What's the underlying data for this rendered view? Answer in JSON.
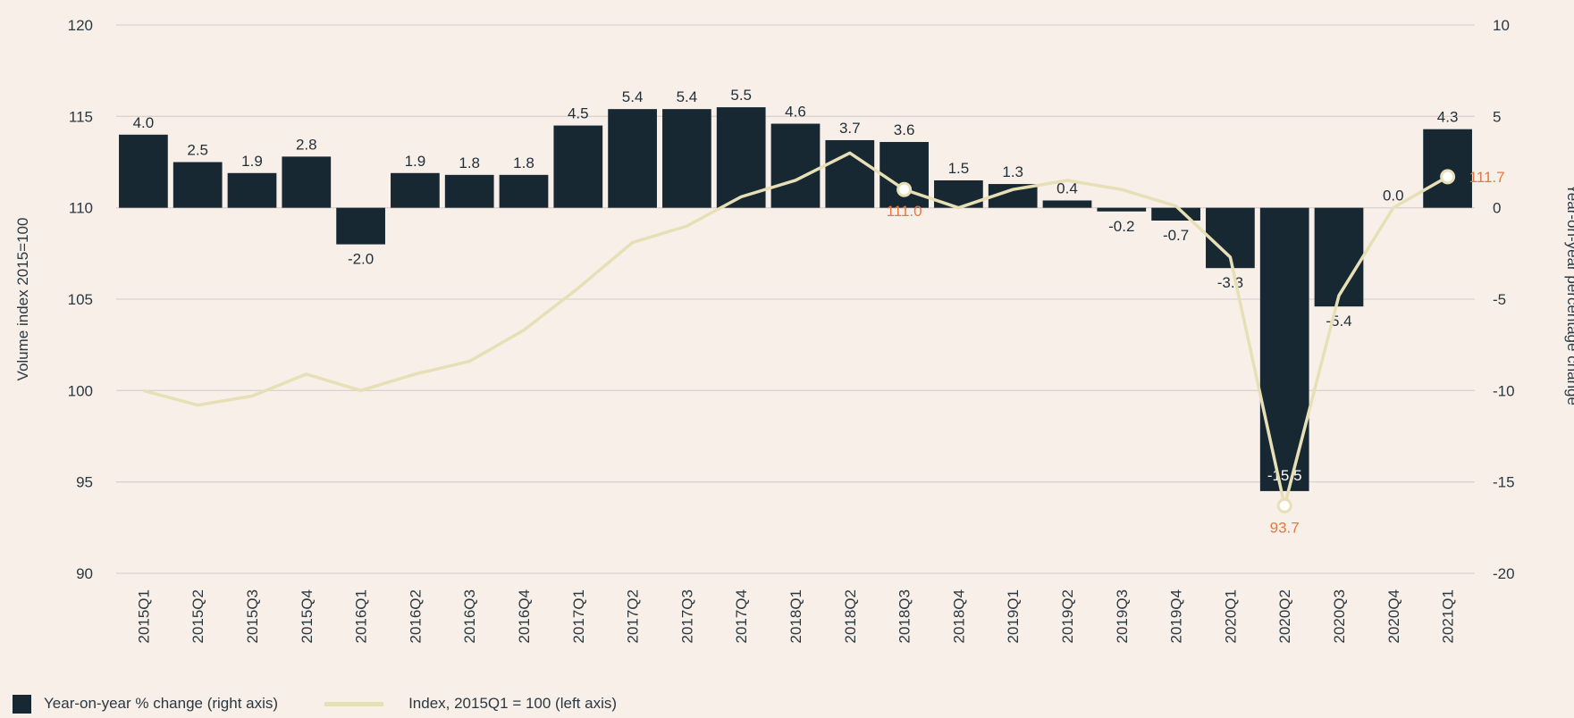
{
  "chart_data": {
    "type": "bar",
    "categories": [
      "2015Q1",
      "2015Q2",
      "2015Q3",
      "2015Q4",
      "2016Q1",
      "2016Q2",
      "2016Q3",
      "2016Q4",
      "2017Q1",
      "2017Q2",
      "2017Q3",
      "2017Q4",
      "2018Q1",
      "2018Q2",
      "2018Q3",
      "2018Q4",
      "2019Q1",
      "2019Q2",
      "2019Q3",
      "2019Q4",
      "2020Q1",
      "2020Q2",
      "2020Q3",
      "2020Q4",
      "2021Q1"
    ],
    "series": [
      {
        "name": "Year-on-year % change (right axis)",
        "type": "bar",
        "axis": "right",
        "color": "#172832",
        "values": [
          4.0,
          2.5,
          1.9,
          2.8,
          -2.0,
          1.9,
          1.8,
          1.8,
          4.5,
          5.4,
          5.4,
          5.5,
          4.6,
          3.7,
          3.6,
          1.5,
          1.3,
          0.4,
          -0.2,
          -0.7,
          -3.3,
          -15.5,
          -5.4,
          0.0,
          4.3
        ],
        "value_labels": [
          "4.0",
          "2.5",
          "1.9",
          "2.8",
          "-2.0",
          "1.9",
          "1.8",
          "1.8",
          "4.5",
          "5.4",
          "5.4",
          "5.5",
          "4.6",
          "3.7",
          "3.6",
          "1.5",
          "1.3",
          "0.4",
          "-0.2",
          "-0.7",
          "-3.3",
          "-15.5",
          "-5.4",
          "0.0",
          "4.3"
        ]
      },
      {
        "name": "Index, 2015Q1 = 100 (left axis)",
        "type": "line",
        "axis": "left",
        "color": "#e7dfb6",
        "values": [
          100.0,
          99.2,
          99.7,
          100.9,
          100.0,
          100.9,
          101.6,
          103.3,
          105.6,
          108.1,
          109.0,
          110.6,
          111.5,
          113.0,
          111.0,
          110.0,
          111.0,
          111.5,
          111.0,
          110.1,
          107.3,
          93.7,
          105.2,
          110.0,
          111.7
        ],
        "highlights": [
          {
            "category": "2018Q3",
            "label": "111.0"
          },
          {
            "category": "2020Q2",
            "label": "93.7"
          },
          {
            "category": "2021Q1",
            "label": "111.7"
          }
        ]
      }
    ],
    "ylabel": "Volume index 2015=100",
    "ylabel_right": "Year-on-year percentage change",
    "ylim": [
      90,
      120
    ],
    "yticks": [
      90,
      95,
      100,
      105,
      110,
      115,
      120
    ],
    "ylim_right": [
      -20,
      10
    ],
    "yticks_right": [
      -20,
      -15,
      -10,
      -5,
      0,
      5,
      10
    ],
    "grid": true,
    "legend": "bottom-left"
  },
  "legend": {
    "bar_label": "Year-on-year % change (right axis)",
    "line_label": "Index, 2015Q1 = 100 (left axis)"
  }
}
